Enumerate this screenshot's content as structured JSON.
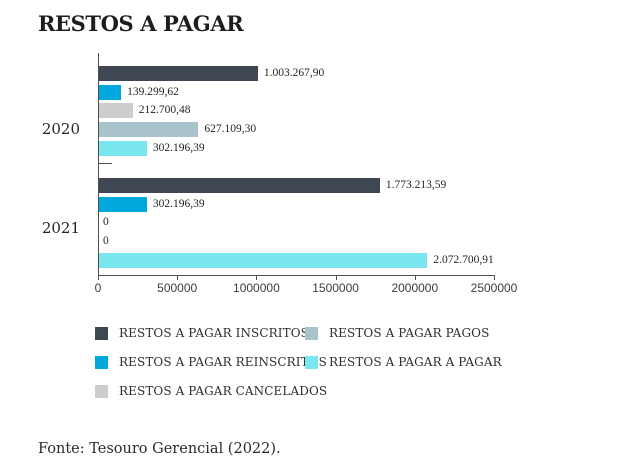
{
  "title": "RESTOS A PAGAR",
  "source": "Fonte: Tesouro Gerencial (2022).",
  "colors": {
    "inscritos": "#3f4852",
    "reinscritos": "#00a7dc",
    "cancelados": "#cdcdcd",
    "pagos": "#a9c3cd",
    "a_pagar": "#79e6f0",
    "axis": "#4f4f4f"
  },
  "chart_data": {
    "type": "bar",
    "orientation": "horizontal",
    "title": "RESTOS A PAGAR",
    "categories": [
      "2020",
      "2021"
    ],
    "series": [
      {
        "key": "inscritos",
        "name": "RESTOS A PAGAR INSCRITOS",
        "color": "#3f4852",
        "values": [
          1003267.9,
          1773213.59
        ],
        "value_labels": [
          "1.003.267,90",
          "1.773.213,59"
        ]
      },
      {
        "key": "reinscritos",
        "name": "RESTOS A PAGAR REINSCRITOS",
        "color": "#00a7dc",
        "values": [
          139299.62,
          302196.39
        ],
        "value_labels": [
          "139.299,62",
          "302.196,39"
        ]
      },
      {
        "key": "cancelados",
        "name": "RESTOS A PAGAR CANCELADOS",
        "color": "#cdcdcd",
        "values": [
          212700.48,
          0
        ],
        "value_labels": [
          "212.700,48",
          "0"
        ]
      },
      {
        "key": "pagos",
        "name": "RESTOS A PAGAR PAGOS",
        "color": "#a9c3cd",
        "values": [
          627109.3,
          0
        ],
        "value_labels": [
          "627.109,30",
          "0"
        ]
      },
      {
        "key": "a_pagar",
        "name": "RESTOS A PAGAR A PAGAR",
        "color": "#79e6f0",
        "values": [
          302196.39,
          2072700.91
        ],
        "value_labels": [
          "302.196,39",
          "2.072.700,91"
        ]
      }
    ],
    "xlim": [
      0,
      2500000
    ],
    "x_ticks": {
      "values": [
        0,
        500000,
        1000000,
        1500000,
        2000000,
        2500000
      ],
      "labels": [
        "0",
        "500000",
        "1000000",
        "1500000",
        "2000000",
        "2500000"
      ]
    },
    "legend": {
      "position": "bottom-left",
      "columns": 2,
      "items_order": [
        "inscritos",
        "pagos",
        "reinscritos",
        "a_pagar",
        "cancelados"
      ]
    },
    "grid": false
  }
}
